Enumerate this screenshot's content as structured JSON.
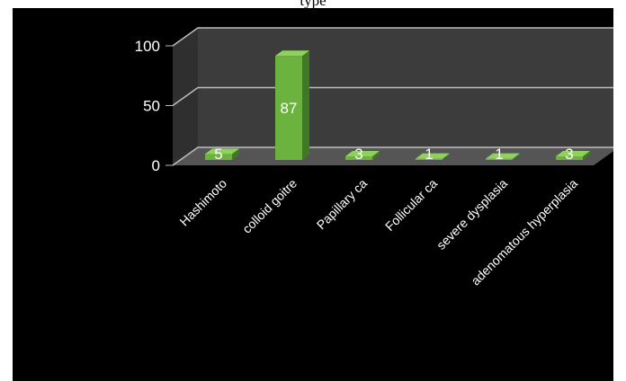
{
  "caption": "type",
  "chart_data": {
    "type": "bar",
    "title": "",
    "xlabel": "",
    "ylabel": "",
    "categories": [
      "Hashimoto",
      "colloid goitre",
      "Papillary ca",
      "Follicular ca",
      "severe dysplasia",
      "adenomatous hyperplasia"
    ],
    "values": [
      5,
      87,
      3,
      1,
      1,
      3
    ],
    "data_labels": [
      "5",
      "87",
      "3",
      "1",
      "1",
      "3"
    ],
    "ylim": [
      0,
      100
    ],
    "yticks": [
      0,
      50,
      100
    ],
    "grid": true,
    "legend": "none",
    "style": "3d-column",
    "colors": {
      "bar_front": "#6bb23f",
      "bar_side": "#3f7a22",
      "bar_top": "#8fd15d",
      "wall": "#3c3c3c",
      "wall_side": "#2f2f2f",
      "floor": "#555555",
      "gridline": "#bdbdbd",
      "label": "#ffffff"
    }
  }
}
